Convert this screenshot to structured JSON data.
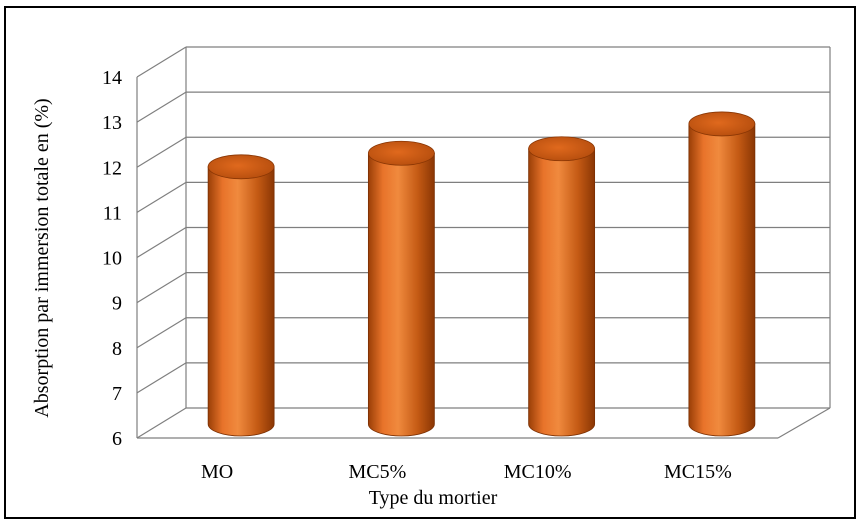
{
  "chart_data": {
    "type": "bar",
    "style": "3d-cylinder",
    "title": "",
    "xlabel": "Type du mortier",
    "ylabel": "Absorption par immersion totale en (%)",
    "categories": [
      "MO",
      "MC5%",
      "MC10%",
      "MC15%"
    ],
    "series": [
      {
        "values": [
          11.7,
          12.0,
          12.1,
          12.65
        ]
      }
    ],
    "ylim": [
      6,
      14
    ],
    "yticks": [
      6,
      7,
      8,
      9,
      10,
      11,
      12,
      13,
      14
    ],
    "grid": true,
    "legend": "none",
    "bar_color": "#C55A11"
  }
}
